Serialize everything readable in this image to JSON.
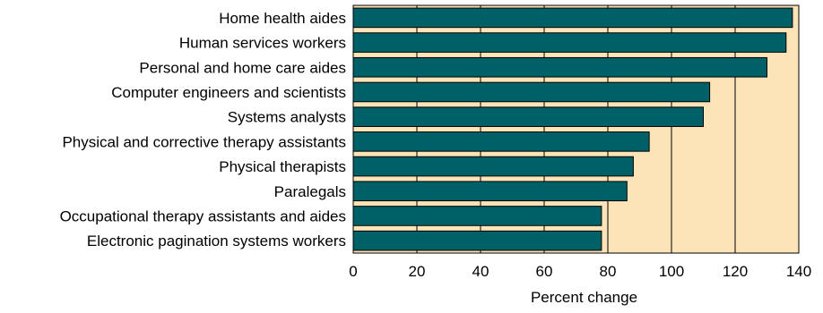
{
  "chart_data": {
    "type": "bar",
    "orientation": "horizontal",
    "title": "",
    "xlabel": "Percent change",
    "ylabel": "",
    "xlim": [
      0,
      140
    ],
    "x_ticks": [
      0,
      20,
      40,
      60,
      80,
      100,
      120,
      140
    ],
    "grid": "vertical",
    "categories": [
      "Home health aides",
      "Human services workers",
      "Personal and home care aides",
      "Computer engineers and scientists",
      "Systems analysts",
      "Physical and corrective therapy assistants",
      "Physical therapists",
      "Paralegals",
      "Occupational therapy assistants and aides",
      "Electronic pagination systems workers"
    ],
    "values": [
      138,
      136,
      130,
      112,
      110,
      93,
      88,
      86,
      78,
      78
    ],
    "colors": {
      "bar": "#006067",
      "plot_background": "#fde3b8",
      "gridline": "#000000"
    }
  }
}
